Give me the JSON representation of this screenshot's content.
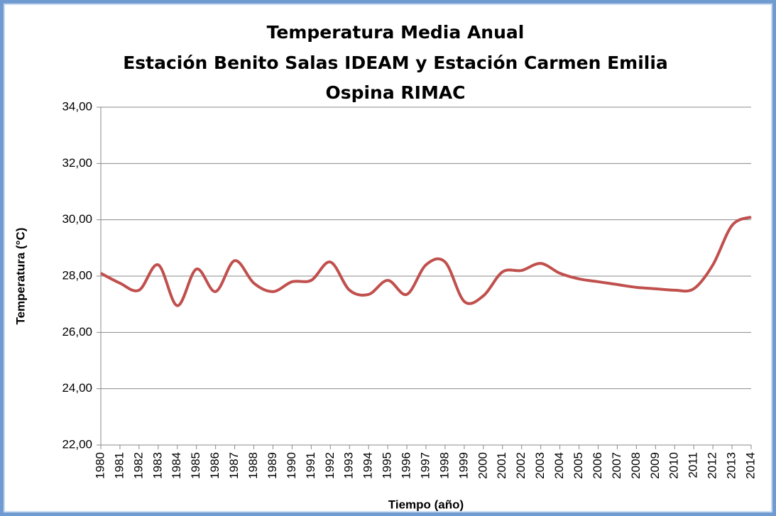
{
  "chart_data": {
    "type": "line",
    "title": [
      "Temperatura Media Anual",
      "Estación Benito Salas IDEAM y Estación Carmen Emilia",
      "Ospina RIMAC"
    ],
    "x_label": "Tiempo (año)",
    "y_label": "Temperatura (°C)",
    "categories": [
      "1980",
      "1981",
      "1982",
      "1983",
      "1984",
      "1985",
      "1986",
      "1987",
      "1988",
      "1989",
      "1990",
      "1991",
      "1992",
      "1993",
      "1994",
      "1995",
      "1996",
      "1997",
      "1998",
      "1999",
      "2000",
      "2001",
      "2002",
      "2003",
      "2004",
      "2005",
      "2006",
      "2007",
      "2008",
      "2009",
      "2010",
      "2011",
      "2012",
      "2013",
      "2014"
    ],
    "series": [
      {
        "color": "#c0504d",
        "values": [
          28.1,
          27.75,
          27.5,
          28.4,
          26.95,
          28.25,
          27.45,
          28.55,
          27.75,
          27.45,
          27.8,
          27.85,
          28.5,
          27.5,
          27.35,
          27.85,
          27.35,
          28.4,
          28.5,
          27.1,
          27.3,
          28.15,
          28.2,
          28.45,
          28.1,
          27.9,
          27.8,
          27.7,
          27.6,
          27.55,
          27.5,
          27.55,
          28.4,
          29.8,
          30.1
        ]
      }
    ],
    "ylim": [
      22,
      34
    ],
    "yticks": [
      {
        "value": 22,
        "label": "22,00"
      },
      {
        "value": 24,
        "label": "24,00"
      },
      {
        "value": 26,
        "label": "26,00"
      },
      {
        "value": 28,
        "label": "28,00"
      },
      {
        "value": 30,
        "label": "30,00"
      },
      {
        "value": 32,
        "label": "32,00"
      },
      {
        "value": 34,
        "label": "34,00"
      }
    ],
    "grid": true
  }
}
